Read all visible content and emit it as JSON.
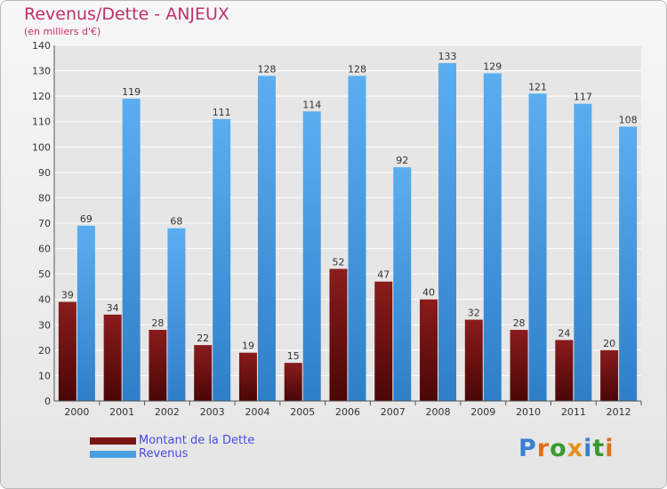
{
  "header": {
    "title": "Revenus/Dette - ANJEUX",
    "subtitle": "(en milliers d'€)"
  },
  "colors": {
    "debt": "#7a1515",
    "revenue": "#4a9fe0",
    "text": "#c0306a",
    "legend_text": "#4a4ae0",
    "axis_text": "#333333",
    "grid": "#ffffff"
  },
  "legend": {
    "debt_label": "Montant de la Dette",
    "revenue_label": "Revenus"
  },
  "logo": {
    "text": "Proxiti",
    "letters": [
      {
        "ch": "P",
        "color": "#3a7fd0"
      },
      {
        "ch": "r",
        "color": "#e07020"
      },
      {
        "ch": "o",
        "color": "#3a9a30"
      },
      {
        "ch": "x",
        "color": "#e09020"
      },
      {
        "ch": "i",
        "color": "#3a7fd0"
      },
      {
        "ch": "t",
        "color": "#3a9a30"
      },
      {
        "ch": "i",
        "color": "#e07020"
      }
    ]
  },
  "chart_data": {
    "type": "bar",
    "title": "Revenus/Dette - ANJEUX",
    "subtitle": "(en milliers d'€)",
    "xlabel": "",
    "ylabel": "",
    "categories": [
      "2000",
      "2001",
      "2002",
      "2003",
      "2004",
      "2005",
      "2006",
      "2007",
      "2008",
      "2009",
      "2010",
      "2011",
      "2012"
    ],
    "series": [
      {
        "name": "Montant de la Dette",
        "values": [
          39,
          34,
          28,
          22,
          19,
          15,
          52,
          47,
          40,
          32,
          28,
          24,
          20
        ]
      },
      {
        "name": "Revenus",
        "values": [
          69,
          119,
          68,
          111,
          128,
          114,
          128,
          92,
          133,
          129,
          121,
          117,
          108
        ]
      }
    ],
    "ylim": [
      0,
      140
    ],
    "yticks": [
      0,
      10,
      20,
      30,
      40,
      50,
      60,
      70,
      80,
      90,
      100,
      110,
      120,
      130,
      140
    ],
    "grid": true,
    "legend_position": "bottom-left"
  }
}
